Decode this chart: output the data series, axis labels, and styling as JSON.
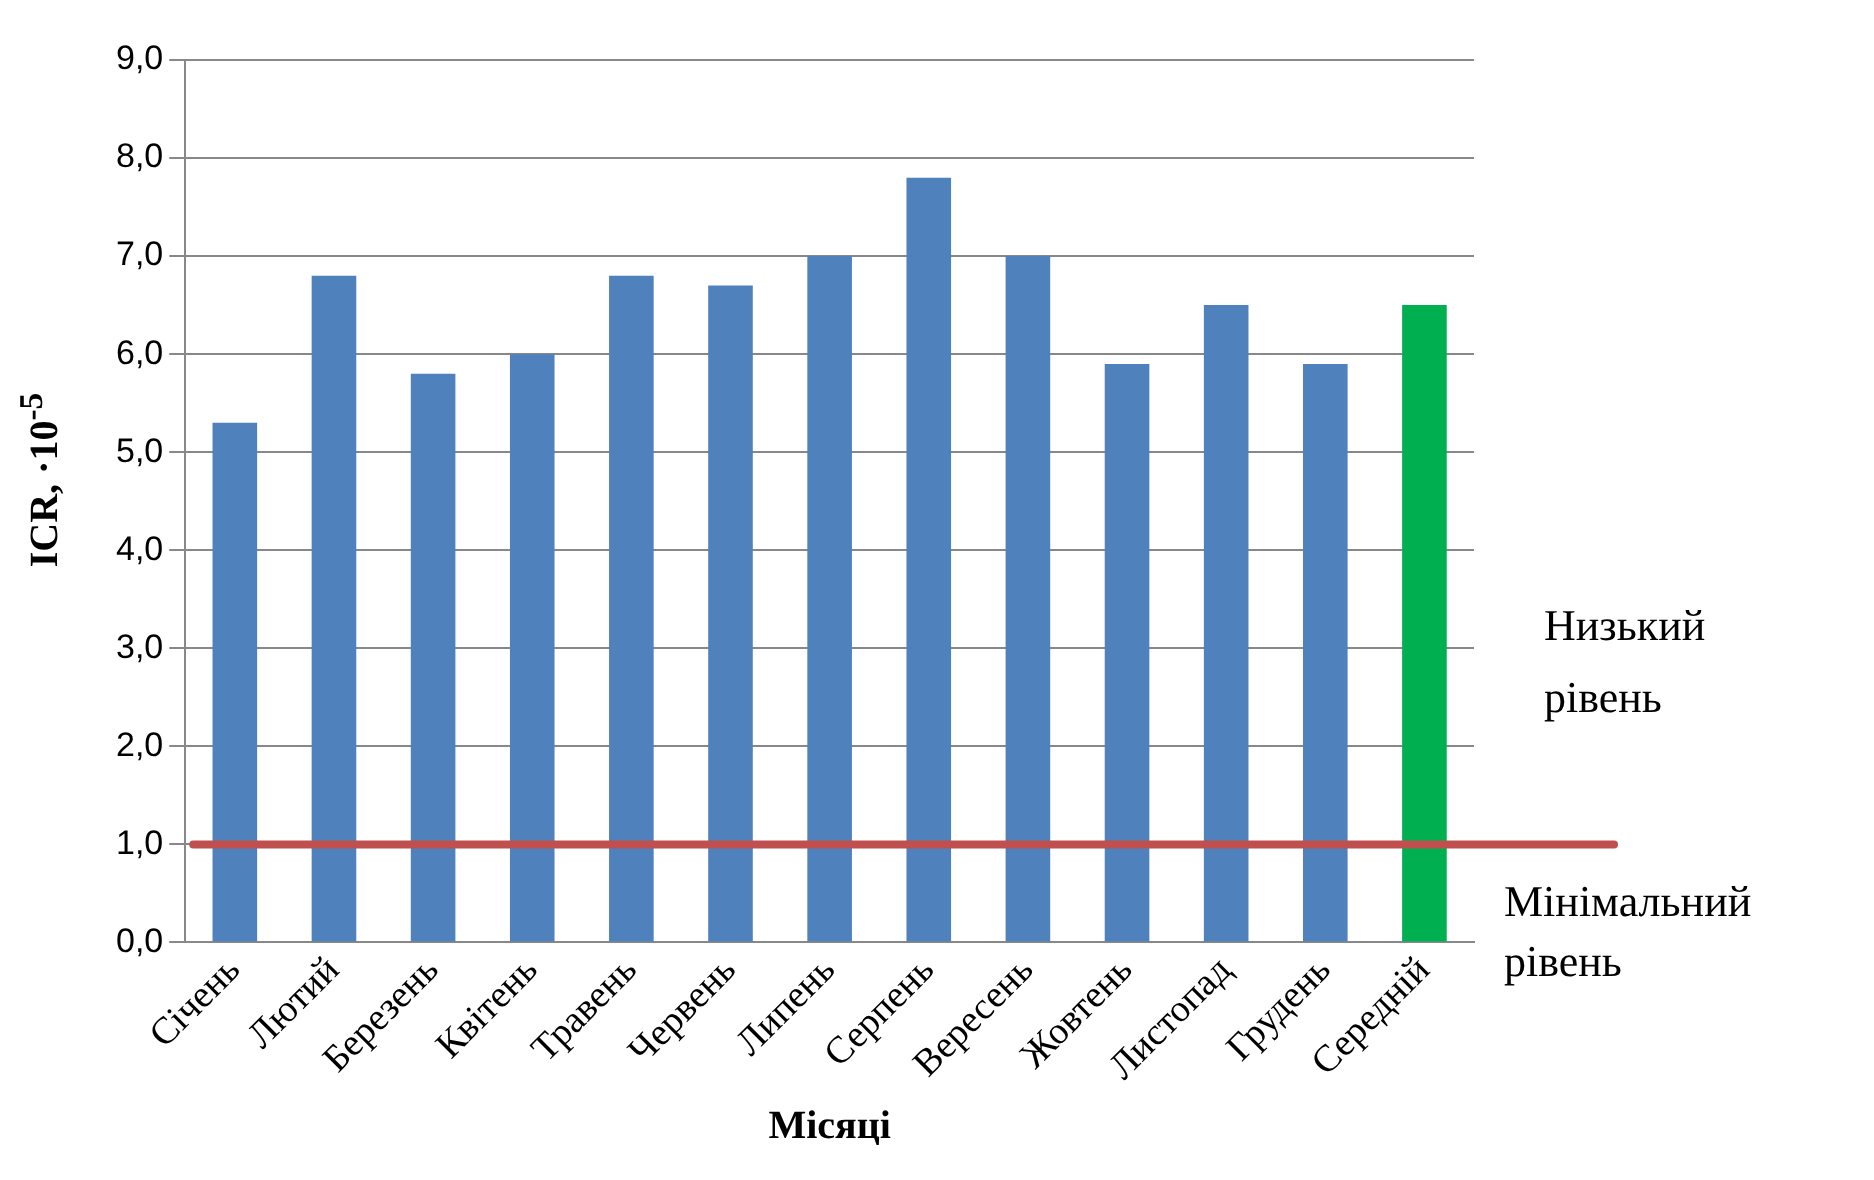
{
  "chart_data": {
    "type": "bar",
    "xlabel": "Місяці",
    "ylabel": "ICR, ·10$^{-5}$",
    "categories": [
      "Січень",
      "Лютий",
      "Березень",
      "Квітень",
      "Травень",
      "Червень",
      "Липень",
      "Серпень",
      "Вересень",
      "Жовтень",
      "Листопад",
      "Грудень",
      "Середній"
    ],
    "values": [
      5.3,
      6.8,
      5.8,
      6.0,
      6.8,
      6.7,
      7.0,
      7.8,
      7.0,
      5.9,
      6.5,
      5.9,
      6.5
    ],
    "colors": [
      "#4f81bd",
      "#4f81bd",
      "#4f81bd",
      "#4f81bd",
      "#4f81bd",
      "#4f81bd",
      "#4f81bd",
      "#4f81bd",
      "#4f81bd",
      "#4f81bd",
      "#4f81bd",
      "#4f81bd",
      "#00b050"
    ],
    "ylim": [
      0,
      9
    ],
    "yticks": [
      {
        "value": 0,
        "label": "0,0"
      },
      {
        "value": 1,
        "label": "1,0"
      },
      {
        "value": 2,
        "label": "2,0"
      },
      {
        "value": 3,
        "label": "3,0"
      },
      {
        "value": 4,
        "label": "4,0"
      },
      {
        "value": 5,
        "label": "5,0"
      },
      {
        "value": 6,
        "label": "6,0"
      },
      {
        "value": 7,
        "label": "7,0"
      },
      {
        "value": 8,
        "label": "8,0"
      },
      {
        "value": 9,
        "label": "9,0"
      }
    ],
    "ref_lines": [
      {
        "axis": "y",
        "value": 1.0,
        "label": "Мінімальний рівень",
        "color": "#c0504d"
      }
    ],
    "annotations": [
      "Низький рівень"
    ],
    "grid": "y",
    "legend": false
  }
}
